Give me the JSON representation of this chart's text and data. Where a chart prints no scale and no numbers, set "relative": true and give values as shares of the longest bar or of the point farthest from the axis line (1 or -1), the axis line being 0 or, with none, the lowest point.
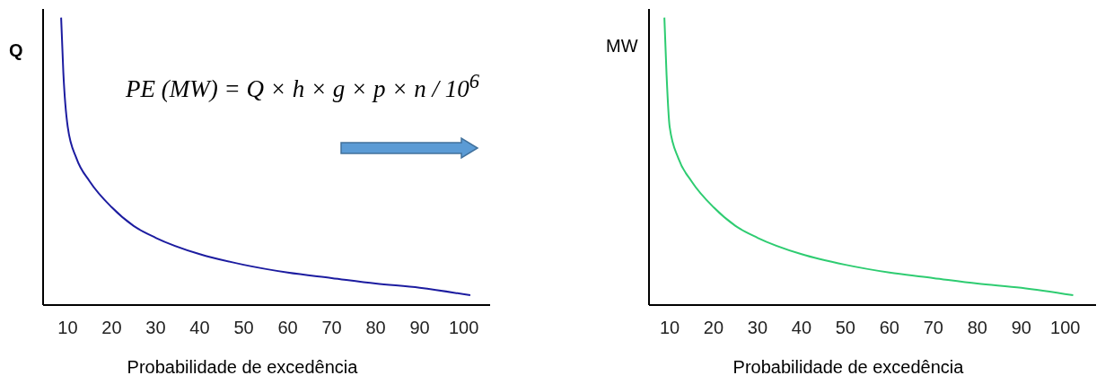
{
  "chart_data": [
    {
      "type": "line",
      "relative": true,
      "xlabel": "Probabilidade de excedência",
      "ylabel": "Q",
      "xlim": [
        4.4,
        106
      ],
      "xticks": [
        10,
        20,
        30,
        40,
        50,
        60,
        70,
        80,
        90,
        100
      ],
      "x": [
        8.5,
        9,
        10,
        12,
        15,
        20,
        25,
        30,
        40,
        50,
        60,
        70,
        80,
        90,
        101.5
      ],
      "series": [
        {
          "color": "#1c1ca0",
          "values": [
            1.0,
            0.81,
            0.62,
            0.51,
            0.43,
            0.34,
            0.275,
            0.234,
            0.177,
            0.14,
            0.113,
            0.094,
            0.075,
            0.06,
            0.034
          ]
        }
      ],
      "annotations": [
        "PE (MW) = Q × h × g × p × n / 10$^{6}$"
      ]
    },
    {
      "type": "line",
      "relative": true,
      "xlabel": "Probabilidade de excedência",
      "ylabel": "MW",
      "xlim": [
        5.3,
        107
      ],
      "xticks": [
        10,
        20,
        30,
        40,
        50,
        60,
        70,
        80,
        90,
        100
      ],
      "x": [
        8.8,
        9.3,
        10,
        12,
        15,
        20,
        25,
        30,
        40,
        50,
        60,
        70,
        80,
        90,
        101.8
      ],
      "series": [
        {
          "color": "#2ecc71",
          "values": [
            1.0,
            0.8,
            0.62,
            0.51,
            0.43,
            0.34,
            0.275,
            0.234,
            0.177,
            0.14,
            0.113,
            0.094,
            0.075,
            0.06,
            0.034
          ]
        }
      ]
    }
  ]
}
